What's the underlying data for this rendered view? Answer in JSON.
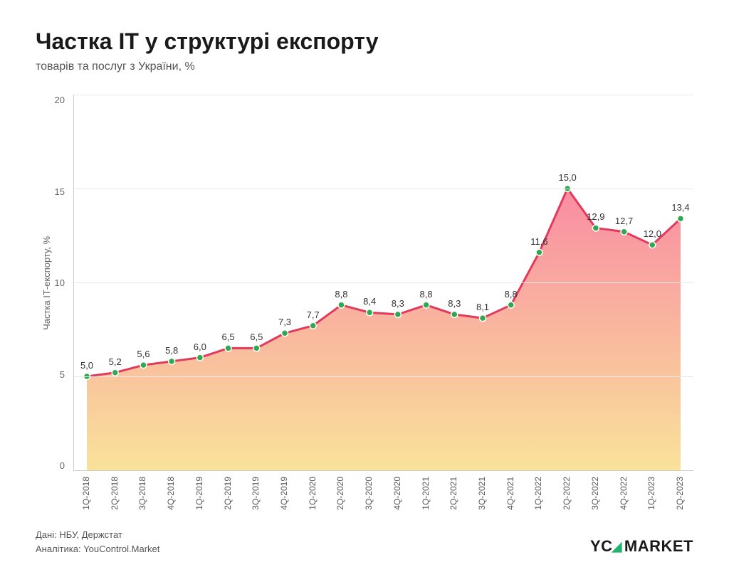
{
  "title": "Частка ІТ у структурі експорту",
  "subtitle": "товарів та послуг з України, %",
  "yaxis_label": "Частка ІТ-експорту, %",
  "credits_line1": "Дані: НБУ, Держстат",
  "credits_line2": "Аналітика: YouControl.Market",
  "brand_prefix": "YC",
  "brand_suffix": "MARKET",
  "chart": {
    "type": "area",
    "ylim": [
      0,
      20
    ],
    "ytick_step": 5,
    "yticks": [
      "20",
      "15",
      "10",
      "5",
      "0"
    ],
    "categories": [
      "1Q-2018",
      "2Q-2018",
      "3Q-2018",
      "4Q-2018",
      "1Q-2019",
      "2Q-2019",
      "3Q-2019",
      "4Q-2019",
      "1Q-2020",
      "2Q-2020",
      "3Q-2020",
      "4Q-2020",
      "1Q-2021",
      "2Q-2021",
      "3Q-2021",
      "4Q-2021",
      "1Q-2022",
      "2Q-2022",
      "3Q-2022",
      "4Q-2022",
      "1Q-2023",
      "2Q-2023"
    ],
    "values": [
      5.0,
      5.2,
      5.6,
      5.8,
      6.0,
      6.5,
      6.5,
      7.3,
      7.7,
      8.8,
      8.4,
      8.3,
      8.8,
      8.3,
      8.1,
      8.8,
      11.6,
      15.0,
      12.9,
      12.7,
      12.0,
      13.4
    ],
    "value_labels": [
      "5,0",
      "5,2",
      "5,6",
      "5,8",
      "6,0",
      "6,5",
      "6,5",
      "7,3",
      "7,7",
      "8,8",
      "8,4",
      "8,3",
      "8,8",
      "8,3",
      "8,1",
      "8,8",
      "11,6",
      "15,0",
      "12,9",
      "12,7",
      "12,0",
      "13,4"
    ],
    "line_color": "#e23a5b",
    "line_width": 3,
    "marker_fill": "#2fa84f",
    "marker_stroke": "#ffffff",
    "marker_radius": 4.5,
    "gradient_top": "#f98ca3",
    "gradient_bottom": "#f9e29a",
    "grid_color": "#e8e8e8",
    "background": "#ffffff",
    "label_fontsize": 13,
    "xlabel_fontsize": 12,
    "title_fontsize": 32
  }
}
